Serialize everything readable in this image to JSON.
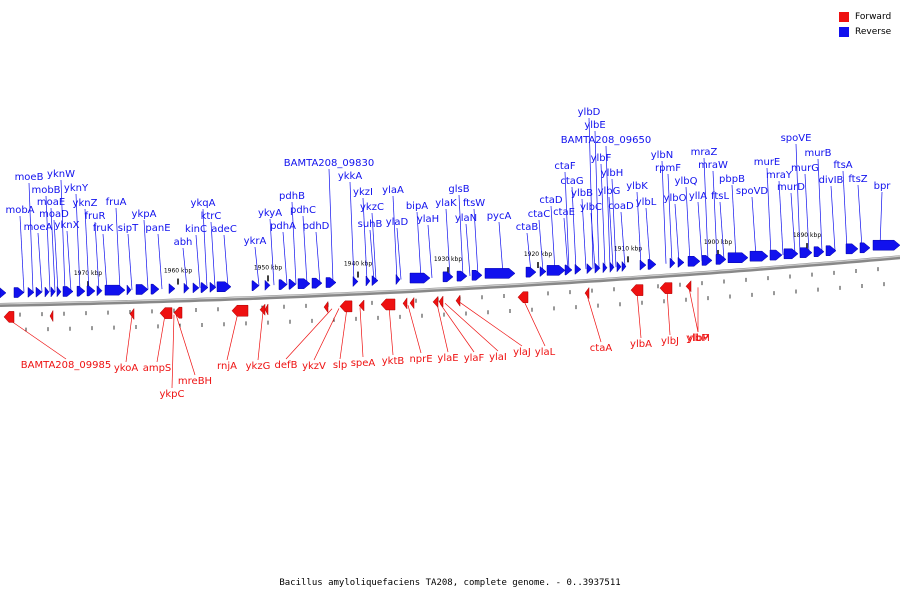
{
  "title": "Bacillus amyloliquefaciens TA208, complete genome. - 0..3937511",
  "legend": [
    {
      "label": "Forward",
      "color": "#ee1111"
    },
    {
      "label": "Reverse",
      "color": "#1111ee"
    }
  ],
  "colors": {
    "forward": "#ee1111",
    "reverse": "#1111ee",
    "backbone": "#888888"
  },
  "ticks": [
    "1970 kbp",
    "1960 kbp",
    "1950 kbp",
    "1940 kbp",
    "1930 kbp",
    "1920 kbp",
    "1910 kbp",
    "1900 kbp",
    "1890 kbp"
  ],
  "reverse_genes": [
    "mobA",
    "moeA",
    "moeB",
    "mobB",
    "moaE",
    "moaD",
    "yknW",
    "yknY",
    "yknX",
    "yknZ",
    "fruR",
    "fruK",
    "fruA",
    "sipT",
    "ykpA",
    "panE",
    "abh",
    "ykqA",
    "kinC",
    "ktrC",
    "adeC",
    "ykrA",
    "ykyA",
    "pdhA",
    "pdhB",
    "pdhC",
    "pdhD",
    "BAMTA208_09830",
    "ykkA",
    "ykzI",
    "ykzC",
    "suhB",
    "ylaA",
    "ylaD",
    "bipA",
    "ylaH",
    "ylaK",
    "glsB",
    "ylaN",
    "ftsW",
    "pycA",
    "ctaB",
    "ctaC",
    "ctaD",
    "ctaE",
    "ctaF",
    "ctaG",
    "ylbB",
    "ylbC",
    "ylbD",
    "ylbE",
    "BAMTA208_09650",
    "ylbF",
    "ylbG",
    "ylbH",
    "coaD",
    "ylbK",
    "ylbL",
    "ylbN",
    "rpmF",
    "ylbO",
    "ylbQ",
    "yllA",
    "mraZ",
    "mraW",
    "ftsL",
    "pbpB",
    "spoVD",
    "murE",
    "mraY",
    "murD",
    "spoVE",
    "murG",
    "murB",
    "divIB",
    "ftsA",
    "ftsZ",
    "bpr"
  ],
  "forward_genes": [
    "BAMTA208_09985",
    "ykoA",
    "ampS",
    "ykpC",
    "mreBH",
    "rnjA",
    "ykzG",
    "defB",
    "ykzV",
    "slp",
    "speA",
    "yktB",
    "nprE",
    "ylaE",
    "ylaF",
    "ylaI",
    "ylaJ",
    "ylaL",
    "ctaA",
    "ylbA",
    "ylbJ",
    "ylbM",
    "ylbP"
  ]
}
